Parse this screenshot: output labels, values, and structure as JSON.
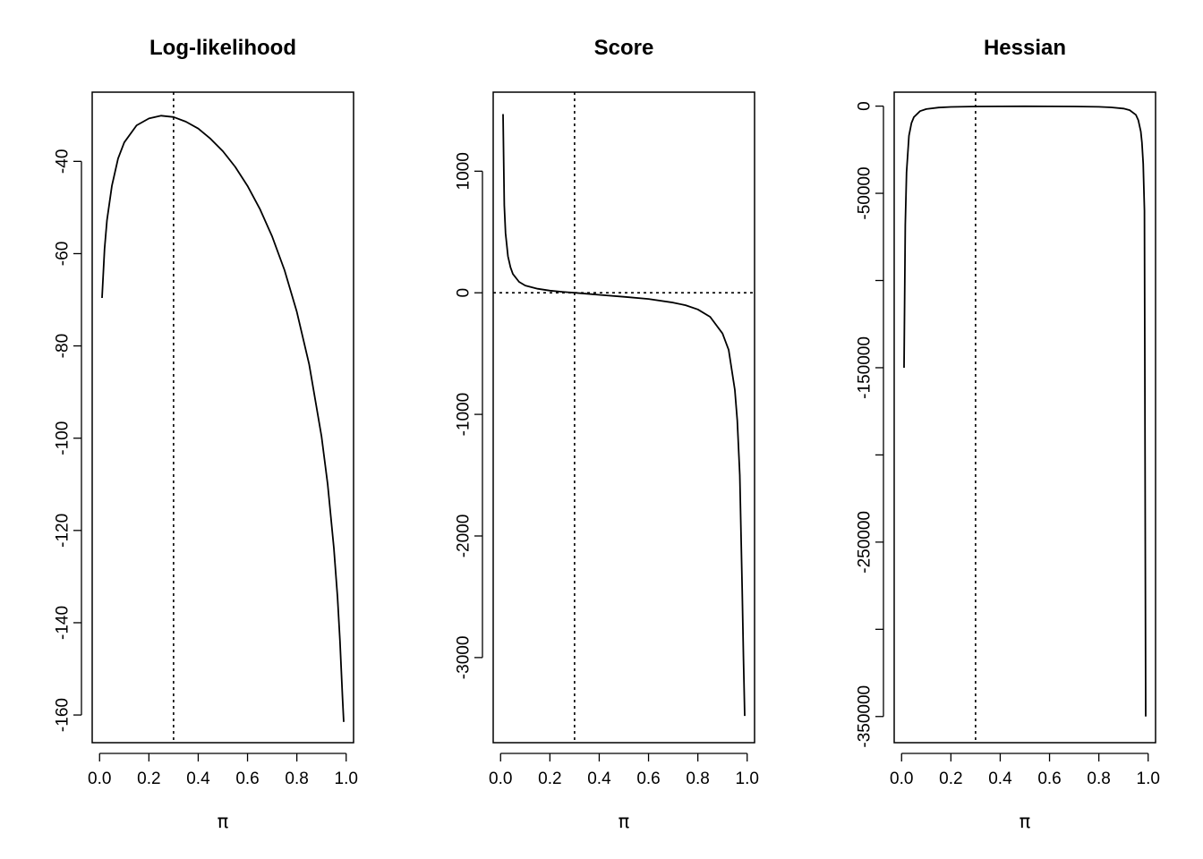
{
  "figure": {
    "xlabel": "π"
  },
  "chart_data": [
    {
      "type": "line",
      "title": "Log-likelihood",
      "xlabel": "π",
      "ylabel": "",
      "xlim": [
        -0.03,
        1.03
      ],
      "ylim": [
        -166,
        -25
      ],
      "xticks": [
        0.0,
        0.2,
        0.4,
        0.6,
        0.8,
        1.0
      ],
      "xtick_labels": [
        "0.0",
        "0.2",
        "0.4",
        "0.6",
        "0.8",
        "1.0"
      ],
      "yticks": [
        -40,
        -60,
        -80,
        -100,
        -120,
        -140,
        -160
      ],
      "ytick_labels": [
        "-40",
        "-60",
        "-80",
        "-100",
        "-120",
        "-140",
        "-160"
      ],
      "vline": 0.3,
      "hline": null,
      "grid": false,
      "x": [
        0.01,
        0.02,
        0.03,
        0.05,
        0.075,
        0.1,
        0.15,
        0.2,
        0.25,
        0.3,
        0.35,
        0.4,
        0.45,
        0.5,
        0.55,
        0.6,
        0.65,
        0.7,
        0.75,
        0.8,
        0.85,
        0.9,
        0.925,
        0.95,
        0.965,
        0.975,
        0.985,
        0.99
      ],
      "y": [
        -69.6,
        -59.0,
        -52.8,
        -45.3,
        -39.4,
        -35.9,
        -32.2,
        -30.7,
        -30.1,
        -30.4,
        -31.4,
        -32.9,
        -35.1,
        -37.8,
        -41.2,
        -45.3,
        -50.3,
        -56.3,
        -63.6,
        -72.6,
        -84.0,
        -99.6,
        -110.0,
        -123.8,
        -134.5,
        -143.9,
        -156.0,
        -161.5
      ]
    },
    {
      "type": "line",
      "title": "Score",
      "xlabel": "π",
      "ylabel": "",
      "xlim": [
        -0.03,
        1.03
      ],
      "ylim": [
        -3700,
        1650
      ],
      "xticks": [
        0.0,
        0.2,
        0.4,
        0.6,
        0.8,
        1.0
      ],
      "xtick_labels": [
        "0.0",
        "0.2",
        "0.4",
        "0.6",
        "0.8",
        "1.0"
      ],
      "yticks": [
        1000,
        0,
        -1000,
        -2000,
        -3000
      ],
      "ytick_labels": [
        "1000",
        "0",
        "-1000",
        "-2000",
        "-3000"
      ],
      "vline": 0.3,
      "hline": 0,
      "grid": false,
      "x": [
        0.01,
        0.015,
        0.02,
        0.03,
        0.04,
        0.05,
        0.075,
        0.1,
        0.15,
        0.2,
        0.25,
        0.3,
        0.35,
        0.4,
        0.5,
        0.6,
        0.7,
        0.75,
        0.8,
        0.85,
        0.9,
        0.925,
        0.95,
        0.96,
        0.97,
        0.98,
        0.985,
        0.99
      ],
      "y": [
        1470,
        720,
        490,
        300,
        210,
        155,
        90,
        60,
        33,
        18,
        8,
        0,
        -8,
        -17,
        -33,
        -51,
        -81,
        -102,
        -137,
        -198,
        -335,
        -470,
        -800,
        -1050,
        -1500,
        -2450,
        -3000,
        -3480
      ]
    },
    {
      "type": "line",
      "title": "Hessian",
      "xlabel": "π",
      "ylabel": "",
      "xlim": [
        -0.03,
        1.03
      ],
      "ylim": [
        -365000,
        8000
      ],
      "xticks": [
        0.0,
        0.2,
        0.4,
        0.6,
        0.8,
        1.0
      ],
      "xtick_labels": [
        "0.0",
        "0.2",
        "0.4",
        "0.6",
        "0.8",
        "1.0"
      ],
      "yticks": [
        0,
        -50000,
        -100000,
        -150000,
        -200000,
        -250000,
        -300000,
        -350000
      ],
      "ytick_labels": [
        "0",
        "-50000",
        "",
        "-150000",
        "",
        "-250000",
        "",
        "-350000"
      ],
      "vline": 0.3,
      "hline": null,
      "grid": false,
      "x": [
        0.01,
        0.015,
        0.02,
        0.03,
        0.04,
        0.05,
        0.075,
        0.1,
        0.15,
        0.2,
        0.3,
        0.4,
        0.5,
        0.6,
        0.7,
        0.8,
        0.85,
        0.9,
        0.925,
        0.95,
        0.96,
        0.97,
        0.975,
        0.98,
        0.985,
        0.99
      ],
      "y": [
        -150000,
        -68000,
        -38000,
        -17000,
        -9700,
        -6300,
        -2900,
        -1700,
        -800,
        -470,
        -230,
        -160,
        -130,
        -140,
        -200,
        -430,
        -700,
        -1400,
        -2300,
        -5000,
        -8000,
        -14500,
        -21000,
        -33000,
        -60000,
        -350000
      ]
    }
  ]
}
